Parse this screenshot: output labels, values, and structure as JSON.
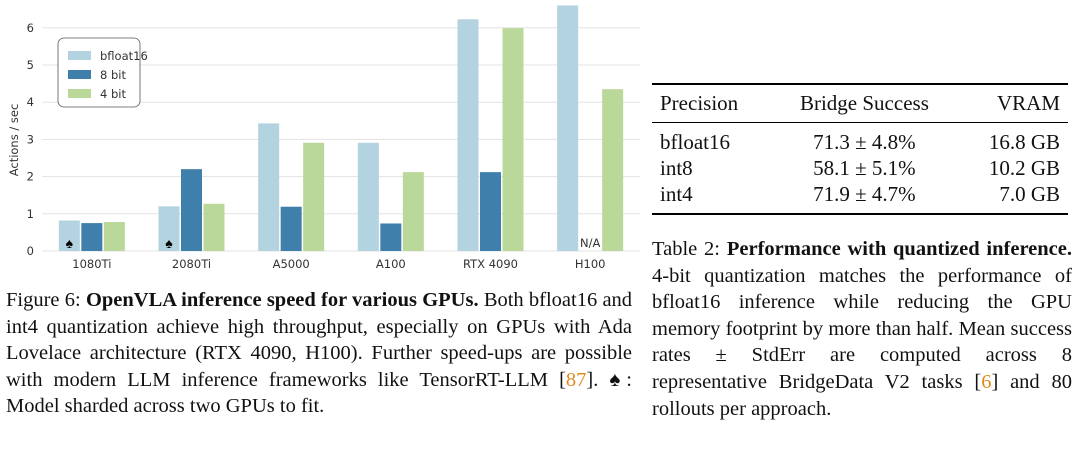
{
  "chart_data": {
    "type": "bar",
    "categories": [
      "1080Ti",
      "2080Ti",
      "A5000",
      "A100",
      "RTX 4090",
      "H100"
    ],
    "series": [
      {
        "name": "bfloat16",
        "color": "#b3d3e0",
        "values": [
          0.82,
          1.2,
          3.43,
          2.91,
          6.23,
          6.6
        ]
      },
      {
        "name": "8 bit",
        "color": "#3f7fab",
        "values": [
          0.75,
          2.2,
          1.19,
          0.74,
          2.12,
          null
        ]
      },
      {
        "name": "4 bit",
        "color": "#b9d89a",
        "values": [
          0.78,
          1.27,
          2.91,
          2.12,
          5.99,
          4.35
        ]
      }
    ],
    "ylabel": "Actions / sec",
    "yticks": [
      0,
      1,
      2,
      3,
      4,
      5,
      6
    ],
    "ylim": [
      0,
      6.65
    ],
    "grid": true,
    "legend": "top-left",
    "annotations": {
      "sharded_marker": "♠",
      "sharded_categories": [
        "1080Ti",
        "2080Ti"
      ],
      "na_label": "N/A",
      "na_category": "H100"
    }
  },
  "figure_caption": {
    "label": "Figure 6:",
    "title": "OpenVLA inference speed for various GPUs.",
    "text1": "Both bfloat16 and int4 quantization achieve high throughput, especially on GPUs with Ada Lovelace architecture (RTX 4090, H100). Further speed-ups are possible with modern LLM inference frameworks like TensorRT-LLM [",
    "ref": "87",
    "text2": "]. ♠: Model sharded across two GPUs to fit."
  },
  "table": {
    "headers": [
      "Precision",
      "Bridge Success",
      "VRAM"
    ],
    "rows": [
      [
        "bfloat16",
        "71.3 ± 4.8%",
        "16.8 GB"
      ],
      [
        "int8",
        "58.1 ± 5.1%",
        "10.2 GB"
      ],
      [
        "int4",
        "71.9 ± 4.7%",
        "7.0 GB"
      ]
    ]
  },
  "table_caption": {
    "label": "Table 2:",
    "title": "Performance with quantized inference.",
    "text1": "4-bit quantization matches the performance of bfloat16 inference while reducing the GPU memory footprint by more than half. Mean success rates ± StdErr are computed across 8 representative BridgeData V2 tasks [",
    "ref": "6",
    "text2": "] and 80 rollouts per approach."
  }
}
